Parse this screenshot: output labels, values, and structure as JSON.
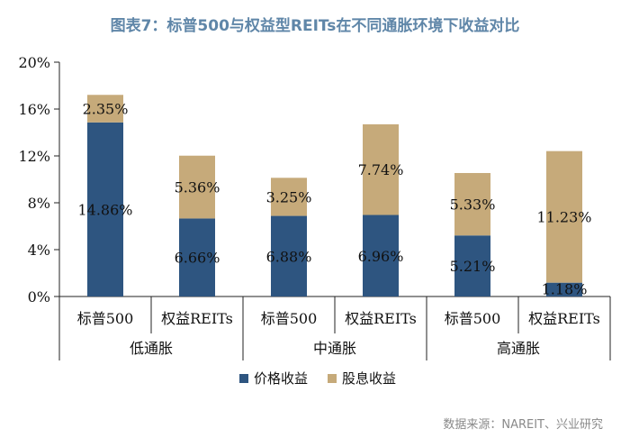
{
  "title": "图表7：标普500与权益型REITs在不同通胀环境下收益对比",
  "source": "数据来源：NAREIT、兴业研究",
  "colors": {
    "price": "#2e5580",
    "dividend": "#c6aa7a",
    "axis": "#222222",
    "text": "#111111"
  },
  "chart_data": {
    "type": "bar",
    "stacked": true,
    "categories": [
      "标普500",
      "权益REITs",
      "标普500",
      "权益REITs",
      "标普500",
      "权益REITs"
    ],
    "groups": [
      {
        "label": "低通胀",
        "span": [
          0,
          1
        ]
      },
      {
        "label": "中通胀",
        "span": [
          2,
          3
        ]
      },
      {
        "label": "高通胀",
        "span": [
          4,
          5
        ]
      }
    ],
    "series": [
      {
        "name": "价格收益",
        "values": [
          14.86,
          6.66,
          6.88,
          6.96,
          5.21,
          1.18
        ],
        "labels": [
          "14.86%",
          "6.66%",
          "6.88%",
          "6.96%",
          "5.21%",
          "1.18%"
        ]
      },
      {
        "name": "股息收益",
        "values": [
          2.35,
          5.36,
          3.25,
          7.74,
          5.33,
          11.23
        ],
        "labels": [
          "2.35%",
          "5.36%",
          "3.25%",
          "7.74%",
          "5.33%",
          "11.23%"
        ]
      }
    ],
    "ylim": [
      0,
      20
    ],
    "yticks": [
      "0%",
      "4%",
      "8%",
      "12%",
      "16%",
      "20%"
    ],
    "ytick_values": [
      0,
      4,
      8,
      12,
      16,
      20
    ],
    "legend_position": "bottom",
    "grid": false
  }
}
